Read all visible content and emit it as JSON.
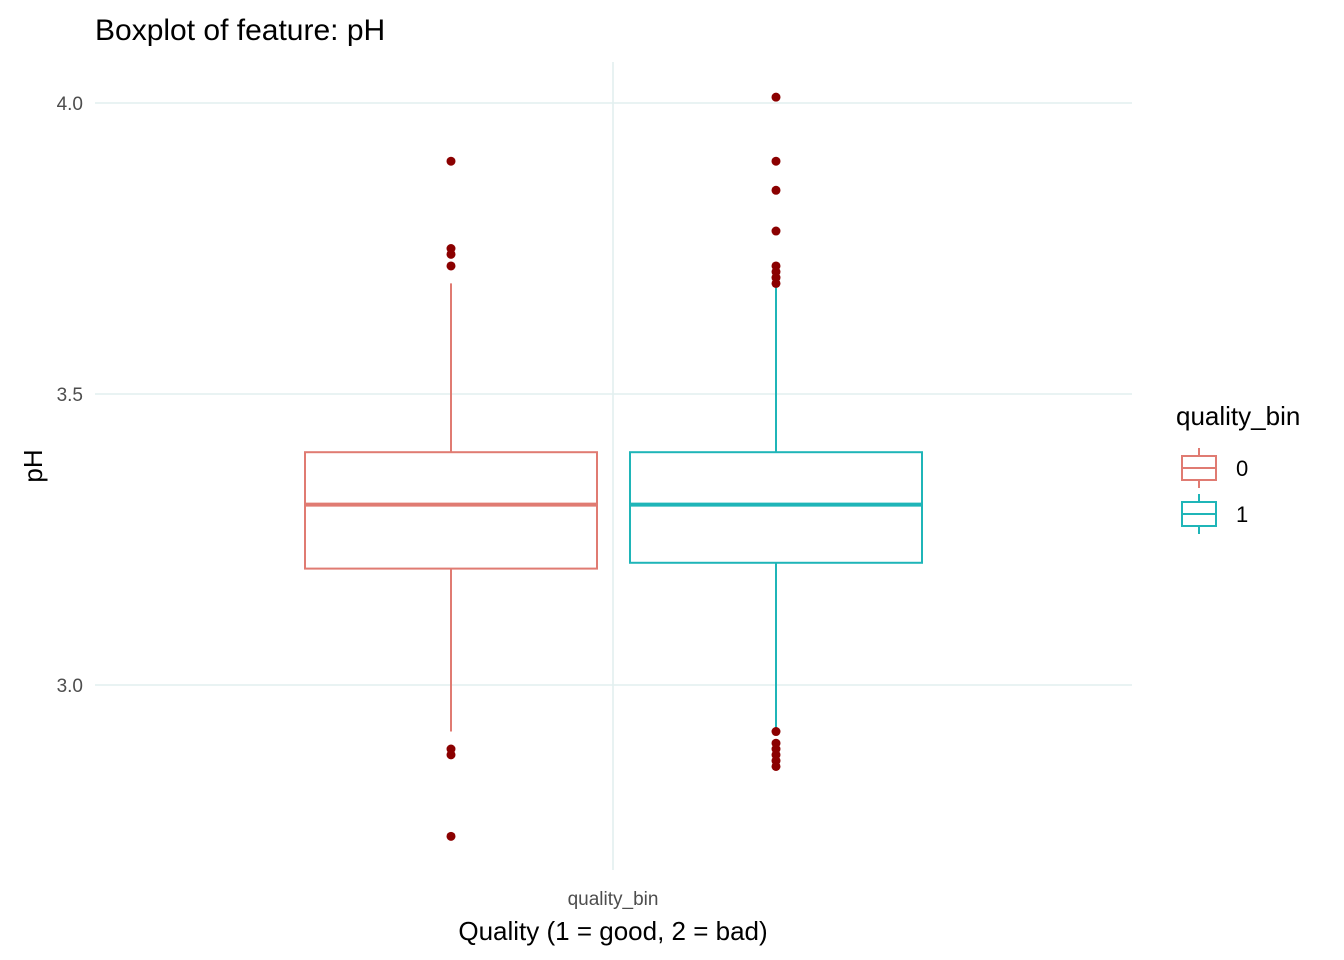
{
  "chart_data": {
    "type": "boxplot",
    "title": "Boxplot of feature: pH",
    "xlabel": "Quality (1 = good, 2 = bad)",
    "ylabel": "pH",
    "x_tick_label": "quality_bin",
    "ylim": [
      2.72,
      4.07
    ],
    "y_ticks": [
      3.0,
      3.5,
      4.0
    ],
    "y_tick_labels": [
      "3.0",
      "3.5",
      "4.0"
    ],
    "grid": true,
    "legend": {
      "title": "quality_bin",
      "position": "right"
    },
    "outlier_color": "#8b0000",
    "series": [
      {
        "name": "0",
        "color": "#e07b72",
        "whisker_low": 2.92,
        "q1": 3.2,
        "median": 3.31,
        "q3": 3.4,
        "whisker_high": 3.69,
        "outliers": [
          3.9,
          3.75,
          3.74,
          3.72,
          2.89,
          2.88,
          2.74
        ]
      },
      {
        "name": "1",
        "color": "#1fb5b8",
        "whisker_low": 2.92,
        "q1": 3.21,
        "median": 3.31,
        "q3": 3.4,
        "whisker_high": 3.69,
        "outliers": [
          4.01,
          3.9,
          3.85,
          3.78,
          3.72,
          3.71,
          3.7,
          3.69,
          2.92,
          2.9,
          2.89,
          2.88,
          2.87,
          2.86
        ]
      }
    ]
  }
}
